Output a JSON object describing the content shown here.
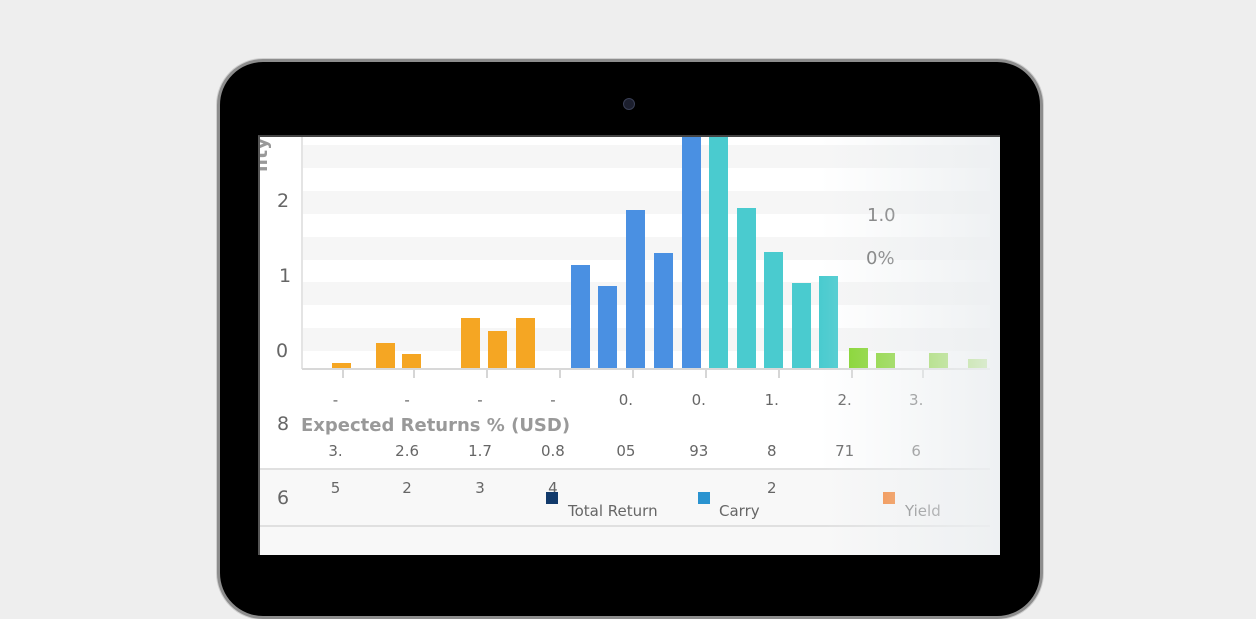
{
  "chart_data": {
    "type": "bar",
    "title": "",
    "ylabel": "lity %",
    "y_tick_labels": [
      "2",
      "1",
      "0"
    ],
    "ylim": [
      0,
      2.3
    ],
    "xlim": [
      0,
      25
    ],
    "grid": true,
    "bars": [
      {
        "x": 1.4,
        "value": 0.05,
        "color": "#f5a623"
      },
      {
        "x": 3.0,
        "value": 0.25,
        "color": "#f5a623"
      },
      {
        "x": 3.95,
        "value": 0.14,
        "color": "#f5a623"
      },
      {
        "x": 6.1,
        "value": 0.5,
        "color": "#f5a623"
      },
      {
        "x": 7.05,
        "value": 0.37,
        "color": "#f5a623"
      },
      {
        "x": 8.1,
        "value": 0.5,
        "color": "#f5a623"
      },
      {
        "x": 10.1,
        "value": 1.03,
        "color": "#4a90e2"
      },
      {
        "x": 11.05,
        "value": 0.82,
        "color": "#4a90e2"
      },
      {
        "x": 12.1,
        "value": 1.58,
        "color": "#4a90e2"
      },
      {
        "x": 13.1,
        "value": 1.15,
        "color": "#4a90e2"
      },
      {
        "x": 14.1,
        "value": 2.31,
        "color": "#4a90e2"
      },
      {
        "x": 15.1,
        "value": 2.31,
        "color": "#4acbcf"
      },
      {
        "x": 16.1,
        "value": 1.6,
        "color": "#4acbcf"
      },
      {
        "x": 17.1,
        "value": 1.16,
        "color": "#4acbcf"
      },
      {
        "x": 18.1,
        "value": 0.85,
        "color": "#4acbcf"
      },
      {
        "x": 19.1,
        "value": 0.92,
        "color": "#4acbcf"
      },
      {
        "x": 20.2,
        "value": 0.2,
        "color": "#7ed321"
      },
      {
        "x": 21.15,
        "value": 0.15,
        "color": "#7ed321"
      },
      {
        "x": 23.1,
        "value": 0.15,
        "color": "#7ed321"
      },
      {
        "x": 24.5,
        "value": 0.09,
        "color": "#7ed321"
      }
    ],
    "x_ticks": [
      1.4,
      4.0,
      6.65,
      9.3,
      11.95,
      14.6,
      17.25,
      19.9,
      22.5
    ],
    "x_tick_labels": [
      [
        "-",
        "3.",
        "5"
      ],
      [
        "-",
        "2.6",
        "2"
      ],
      [
        "-",
        "1.7",
        "3"
      ],
      [
        "-",
        "0.8",
        "4"
      ],
      [
        "0.",
        "05",
        ""
      ],
      [
        "0.",
        "93",
        ""
      ],
      [
        "1.",
        "8",
        "2"
      ],
      [
        "2.",
        "71",
        ""
      ],
      [
        "3.",
        "6",
        ""
      ]
    ],
    "annotations": [
      "1.0",
      "0%"
    ],
    "xlabel": "Expected Returns % (USD)",
    "row_labels": [
      "8",
      "6"
    ],
    "legend": [
      {
        "label": "Total Return",
        "color": "#123a6b"
      },
      {
        "label": "Carry",
        "color": "#2a93d0"
      },
      {
        "label": "Yield",
        "color": "#f47b25"
      }
    ]
  }
}
